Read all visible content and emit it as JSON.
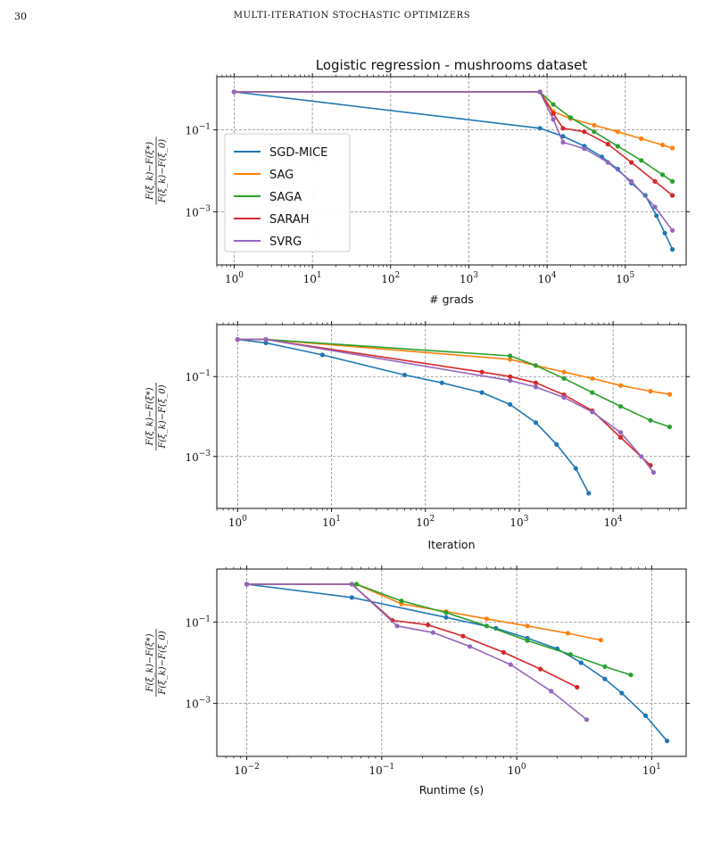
{
  "page": {
    "number": "30",
    "running_head": "MULTI-ITERATION STOCHASTIC OPTIMIZERS"
  },
  "colors": {
    "SGD-MICE": "#1f77b4",
    "SAG": "#ff7f0e",
    "SAGA": "#2ca02c",
    "SARAH": "#d62728",
    "SVRG": "#9467bd"
  },
  "legend": [
    "SGD-MICE",
    "SAG",
    "SAGA",
    "SARAH",
    "SVRG"
  ],
  "chart_data": [
    {
      "type": "line",
      "title": "Logistic regression - mushrooms dataset",
      "xlabel": "# grads",
      "ylabel": "F(ξ_k)−F(ξ*) / F(ξ_k)−F(ξ_0)",
      "xscale": "log",
      "yscale": "log",
      "xlim": [
        0.6,
        600000
      ],
      "ylim": [
        5e-05,
        2
      ],
      "xticks": [
        1,
        10,
        100,
        1000,
        10000,
        100000
      ],
      "xtick_labels": [
        "10^0",
        "10^1",
        "10^2",
        "10^3",
        "10^4",
        "10^5"
      ],
      "yticks": [
        0.1,
        0.001
      ],
      "ytick_labels": [
        "10^-1",
        "10^-3"
      ],
      "grid": true,
      "legend_loc": "center-left",
      "series": [
        {
          "name": "SGD-MICE",
          "x": [
            1,
            8100,
            16000,
            30000,
            50000,
            80000,
            120000,
            180000,
            250000,
            320000,
            400000
          ],
          "y": [
            0.85,
            0.11,
            0.07,
            0.04,
            0.022,
            0.011,
            0.005,
            0.0025,
            0.0008,
            0.0003,
            0.00012
          ],
          "markers": true
        },
        {
          "name": "SAG",
          "x": [
            1,
            8100,
            12000,
            20000,
            40000,
            80000,
            160000,
            300000,
            400000
          ],
          "y": [
            0.85,
            0.85,
            0.28,
            0.19,
            0.13,
            0.09,
            0.061,
            0.043,
            0.036
          ],
          "markers": true
        },
        {
          "name": "SAGA",
          "x": [
            1,
            8100,
            12000,
            20000,
            40000,
            80000,
            160000,
            300000,
            400000
          ],
          "y": [
            0.85,
            0.85,
            0.42,
            0.2,
            0.09,
            0.04,
            0.018,
            0.008,
            0.0055
          ],
          "markers": true
        },
        {
          "name": "SARAH",
          "x": [
            1,
            8100,
            12000,
            16000,
            30000,
            60000,
            120000,
            240000,
            400000
          ],
          "y": [
            0.85,
            0.85,
            0.25,
            0.11,
            0.09,
            0.045,
            0.016,
            0.0055,
            0.0025
          ],
          "markers": true
        },
        {
          "name": "SVRG",
          "x": [
            1,
            8100,
            12000,
            16000,
            30000,
            60000,
            120000,
            240000,
            400000
          ],
          "y": [
            0.85,
            0.85,
            0.18,
            0.05,
            0.035,
            0.016,
            0.0055,
            0.0013,
            0.00035
          ],
          "markers": true
        }
      ]
    },
    {
      "type": "line",
      "xlabel": "Iteration",
      "ylabel": "F(ξ_k)−F(ξ*) / F(ξ_k)−F(ξ_0)",
      "xscale": "log",
      "yscale": "log",
      "xlim": [
        0.6,
        60000
      ],
      "ylim": [
        5e-05,
        2
      ],
      "xticks": [
        1,
        10,
        100,
        1000,
        10000
      ],
      "xtick_labels": [
        "10^0",
        "10^1",
        "10^2",
        "10^3",
        "10^4"
      ],
      "yticks": [
        0.1,
        0.001
      ],
      "ytick_labels": [
        "10^-1",
        "10^-3"
      ],
      "grid": true,
      "series": [
        {
          "name": "SGD-MICE",
          "x": [
            1,
            2,
            8,
            60,
            150,
            400,
            800,
            1500,
            2500,
            4000,
            5500
          ],
          "y": [
            0.85,
            0.7,
            0.35,
            0.11,
            0.07,
            0.04,
            0.02,
            0.007,
            0.002,
            0.0005,
            0.00012
          ],
          "markers": true
        },
        {
          "name": "SAG",
          "x": [
            1,
            2,
            800,
            1500,
            3000,
            6000,
            12000,
            25000,
            40000
          ],
          "y": [
            0.85,
            0.85,
            0.27,
            0.19,
            0.13,
            0.09,
            0.06,
            0.043,
            0.036
          ],
          "markers": true
        },
        {
          "name": "SAGA",
          "x": [
            1,
            2,
            800,
            1500,
            3000,
            6000,
            12000,
            25000,
            40000
          ],
          "y": [
            0.85,
            0.85,
            0.33,
            0.19,
            0.09,
            0.04,
            0.018,
            0.008,
            0.0055
          ],
          "markers": true
        },
        {
          "name": "SARAH",
          "x": [
            1,
            2,
            400,
            800,
            1500,
            3000,
            6000,
            12000,
            25000
          ],
          "y": [
            0.85,
            0.85,
            0.13,
            0.1,
            0.07,
            0.035,
            0.014,
            0.003,
            0.0006
          ],
          "markers": true
        },
        {
          "name": "SVRG",
          "x": [
            1,
            2,
            800,
            1500,
            3000,
            6000,
            12000,
            20000,
            27000
          ],
          "y": [
            0.85,
            0.85,
            0.08,
            0.055,
            0.03,
            0.013,
            0.004,
            0.001,
            0.0004
          ],
          "markers": true
        }
      ]
    },
    {
      "type": "line",
      "xlabel": "Runtime (s)",
      "ylabel": "F(ξ_k)−F(ξ*) / F(ξ_k)−F(ξ_0)",
      "xscale": "log",
      "yscale": "log",
      "xlim": [
        0.006,
        18
      ],
      "ylim": [
        5e-05,
        2
      ],
      "xticks": [
        0.01,
        0.1,
        1,
        10
      ],
      "xtick_labels": [
        "10^-2",
        "10^-1",
        "10^0",
        "10^1"
      ],
      "yticks": [
        0.1,
        0.001
      ],
      "ytick_labels": [
        "10^-1",
        "10^-3"
      ],
      "grid": true,
      "series": [
        {
          "name": "SGD-MICE",
          "x": [
            0.01,
            0.06,
            0.3,
            0.7,
            1.2,
            2,
            3,
            4.5,
            6,
            9,
            13
          ],
          "y": [
            0.85,
            0.4,
            0.13,
            0.07,
            0.04,
            0.022,
            0.01,
            0.004,
            0.0018,
            0.0005,
            0.00012
          ],
          "markers": true
        },
        {
          "name": "SAG",
          "x": [
            0.01,
            0.065,
            0.14,
            0.3,
            0.6,
            1.2,
            2.4,
            4.2
          ],
          "y": [
            0.85,
            0.85,
            0.28,
            0.18,
            0.12,
            0.08,
            0.053,
            0.036
          ],
          "markers": true
        },
        {
          "name": "SAGA",
          "x": [
            0.01,
            0.065,
            0.14,
            0.3,
            0.6,
            1.2,
            2.5,
            4.5,
            7
          ],
          "y": [
            0.85,
            0.85,
            0.33,
            0.17,
            0.08,
            0.035,
            0.016,
            0.008,
            0.005
          ],
          "markers": true
        },
        {
          "name": "SARAH",
          "x": [
            0.01,
            0.06,
            0.12,
            0.22,
            0.4,
            0.8,
            1.5,
            2.8
          ],
          "y": [
            0.85,
            0.85,
            0.11,
            0.085,
            0.045,
            0.018,
            0.007,
            0.0025
          ],
          "markers": true
        },
        {
          "name": "SVRG",
          "x": [
            0.01,
            0.06,
            0.13,
            0.24,
            0.45,
            0.9,
            1.8,
            3.3
          ],
          "y": [
            0.85,
            0.85,
            0.08,
            0.055,
            0.025,
            0.009,
            0.002,
            0.0004
          ],
          "markers": true
        }
      ]
    }
  ]
}
